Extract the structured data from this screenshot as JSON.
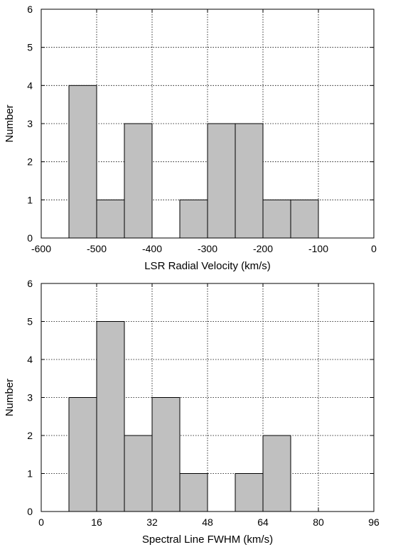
{
  "chart_data": [
    {
      "type": "bar",
      "style": "histogram",
      "xlabel": "LSR Radial Velocity (km/s)",
      "ylabel": "Number",
      "xlim": [
        -600,
        0
      ],
      "ylim": [
        0,
        6
      ],
      "xticks": [
        -600,
        -500,
        -400,
        -300,
        -200,
        -100,
        0
      ],
      "yticks": [
        0,
        1,
        2,
        3,
        4,
        5,
        6
      ],
      "bin_edges": [
        -550,
        -500,
        -450,
        -400,
        -350,
        -300,
        -250,
        -200,
        -150,
        -100
      ],
      "values": [
        4,
        1,
        3,
        0,
        1,
        3,
        3,
        1,
        1
      ],
      "grid": true,
      "bar_color": "#c0c0c0"
    },
    {
      "type": "bar",
      "style": "histogram",
      "xlabel": "Spectral Line FWHM (km/s)",
      "ylabel": "Number",
      "xlim": [
        0,
        96
      ],
      "ylim": [
        0,
        6
      ],
      "xticks": [
        0,
        16,
        32,
        48,
        64,
        80,
        96
      ],
      "yticks": [
        0,
        1,
        2,
        3,
        4,
        5,
        6
      ],
      "bin_edges": [
        8,
        16,
        24,
        32,
        40,
        48,
        56,
        64,
        72
      ],
      "values": [
        3,
        5,
        2,
        3,
        1,
        0,
        1,
        2
      ],
      "grid": true,
      "bar_color": "#c0c0c0"
    }
  ]
}
